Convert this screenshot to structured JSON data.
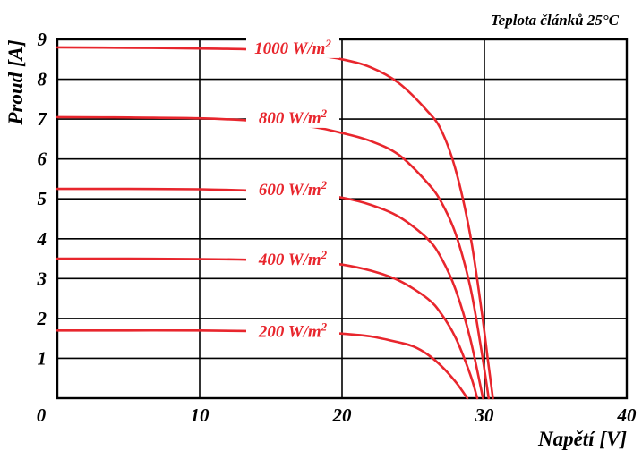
{
  "chart_data": {
    "type": "line",
    "note": "Teplota článků 25°C",
    "xlabel": "Napětí [V]",
    "ylabel": "Proud [A]",
    "xlim": [
      0,
      40
    ],
    "ylim": [
      0,
      9
    ],
    "x_ticks": [
      0,
      10,
      20,
      30,
      40
    ],
    "y_ticks": [
      1,
      2,
      3,
      4,
      5,
      6,
      7,
      8,
      9
    ],
    "grid": true,
    "line_color": "#e8262d",
    "series": [
      {
        "name": "1000 W/m²",
        "label_base": "1000 W/m",
        "label_sup": "2",
        "isc": 8.8,
        "voc": 30.6,
        "points": [
          [
            0,
            8.8
          ],
          [
            5,
            8.79
          ],
          [
            10,
            8.77
          ],
          [
            14,
            8.74
          ],
          [
            18,
            8.6
          ],
          [
            20,
            8.5
          ],
          [
            22,
            8.3
          ],
          [
            24,
            7.9
          ],
          [
            26,
            7.2
          ],
          [
            27,
            6.7
          ],
          [
            28,
            5.7
          ],
          [
            29,
            4.1
          ],
          [
            29.8,
            2.2
          ],
          [
            30.3,
            0.8
          ],
          [
            30.6,
            0
          ]
        ]
      },
      {
        "name": "800 W/m²",
        "label_base": "800 W/m",
        "label_sup": "2",
        "isc": 7.05,
        "voc": 30.3,
        "points": [
          [
            0,
            7.05
          ],
          [
            5,
            7.04
          ],
          [
            10,
            7.02
          ],
          [
            14,
            6.95
          ],
          [
            18,
            6.8
          ],
          [
            20,
            6.65
          ],
          [
            22,
            6.45
          ],
          [
            24,
            6.1
          ],
          [
            26,
            5.4
          ],
          [
            27,
            4.9
          ],
          [
            28,
            4.1
          ],
          [
            29,
            2.8
          ],
          [
            29.7,
            1.4
          ],
          [
            30.3,
            0
          ]
        ]
      },
      {
        "name": "600 W/m²",
        "label_base": "600 W/m",
        "label_sup": "2",
        "isc": 5.25,
        "voc": 29.9,
        "points": [
          [
            0,
            5.25
          ],
          [
            5,
            5.25
          ],
          [
            10,
            5.24
          ],
          [
            14,
            5.2
          ],
          [
            18,
            5.12
          ],
          [
            20,
            5.03
          ],
          [
            22,
            4.85
          ],
          [
            24,
            4.55
          ],
          [
            26,
            4.0
          ],
          [
            27,
            3.5
          ],
          [
            28,
            2.7
          ],
          [
            29,
            1.5
          ],
          [
            29.9,
            0
          ]
        ]
      },
      {
        "name": "400 W/m²",
        "label_base": "400 W/m",
        "label_sup": "2",
        "isc": 3.5,
        "voc": 29.5,
        "points": [
          [
            0,
            3.5
          ],
          [
            5,
            3.5
          ],
          [
            10,
            3.49
          ],
          [
            14,
            3.47
          ],
          [
            18,
            3.42
          ],
          [
            20,
            3.35
          ],
          [
            22,
            3.2
          ],
          [
            24,
            2.95
          ],
          [
            26,
            2.5
          ],
          [
            27,
            2.1
          ],
          [
            28,
            1.5
          ],
          [
            29,
            0.6
          ],
          [
            29.5,
            0
          ]
        ]
      },
      {
        "name": "200 W/m²",
        "label_base": "200 W/m",
        "label_sup": "2",
        "isc": 1.7,
        "voc": 28.8,
        "points": [
          [
            0,
            1.7
          ],
          [
            5,
            1.7
          ],
          [
            10,
            1.7
          ],
          [
            14,
            1.68
          ],
          [
            18,
            1.65
          ],
          [
            20,
            1.62
          ],
          [
            22,
            1.55
          ],
          [
            24,
            1.4
          ],
          [
            25,
            1.3
          ],
          [
            26,
            1.1
          ],
          [
            27,
            0.8
          ],
          [
            28,
            0.4
          ],
          [
            28.8,
            0
          ]
        ]
      }
    ]
  }
}
